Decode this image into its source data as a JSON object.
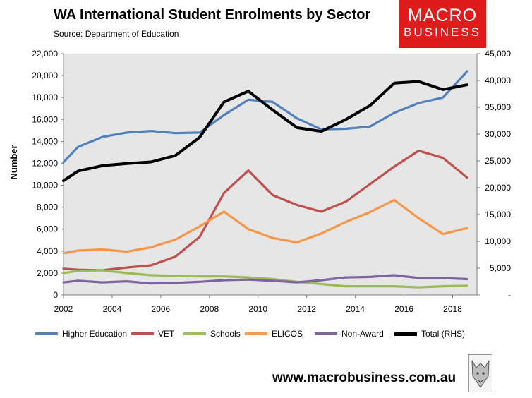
{
  "header": {
    "title": "WA International Student Enrolments by Sector",
    "source": "Source: Department of Education"
  },
  "logo": {
    "line1": "MACRO",
    "line2": "BUSINESS"
  },
  "footer": {
    "website": "www.macrobusiness.com.au"
  },
  "colors": {
    "plot_background": "#e6e6e6",
    "higher_education": "#4f81bd",
    "vet": "#c0504d",
    "schools": "#9bbb59",
    "elicos": "#f79646",
    "non_award": "#8064a2",
    "total": "#000000",
    "logo": "#e01b1b"
  },
  "chart_data": {
    "type": "line",
    "title": "WA International Student Enrolments by Sector",
    "ylabel": "Number",
    "ylabel_right": "",
    "xlim": [
      2002,
      2019
    ],
    "ylim": [
      0,
      22000
    ],
    "ylim_right": [
      0,
      45000
    ],
    "x_ticks": [
      "2002",
      "2004",
      "2006",
      "2008",
      "2010",
      "2012",
      "2014",
      "2016",
      "2018"
    ],
    "y_ticks_left": [
      "0",
      "2,000",
      "4,000",
      "6,000",
      "8,000",
      "10,000",
      "12,000",
      "14,000",
      "16,000",
      "18,000",
      "20,000",
      "22,000"
    ],
    "y_ticks_right": [
      "-",
      "5,000",
      "10,000",
      "15,000",
      "20,000",
      "25,000",
      "30,000",
      "35,000",
      "40,000",
      "45,000"
    ],
    "x": [
      2002.0,
      2002.6,
      2003.6,
      2004.6,
      2005.6,
      2006.6,
      2007.6,
      2008.6,
      2009.6,
      2010.6,
      2011.6,
      2012.6,
      2013.6,
      2014.6,
      2015.6,
      2016.6,
      2017.6,
      2018.6
    ],
    "legend_position": "bottom",
    "series": [
      {
        "name": "Higher Education",
        "axis": "left",
        "color": "#4f81bd",
        "values": [
          12100,
          13500,
          14400,
          14800,
          14950,
          14750,
          14800,
          16400,
          17800,
          17600,
          16100,
          15100,
          15150,
          15350,
          16600,
          17500,
          18000,
          20400
        ]
      },
      {
        "name": "VET",
        "axis": "left",
        "color": "#c0504d",
        "values": [
          2400,
          2300,
          2250,
          2500,
          2700,
          3500,
          5300,
          9300,
          11350,
          9100,
          8200,
          7600,
          8500,
          10100,
          11700,
          13150,
          12500,
          10700
        ]
      },
      {
        "name": "Schools",
        "axis": "left",
        "color": "#9bbb59",
        "values": [
          2000,
          2200,
          2250,
          2000,
          1800,
          1750,
          1700,
          1700,
          1600,
          1450,
          1200,
          1000,
          800,
          800,
          800,
          700,
          800,
          850
        ]
      },
      {
        "name": "ELICOS",
        "axis": "left",
        "color": "#f79646",
        "values": [
          3800,
          4050,
          4150,
          3950,
          4350,
          5050,
          6250,
          7600,
          6000,
          5200,
          4800,
          5600,
          6650,
          7550,
          8650,
          7000,
          5550,
          6100
        ]
      },
      {
        "name": "Non-Award",
        "axis": "left",
        "color": "#8064a2",
        "values": [
          1150,
          1300,
          1150,
          1250,
          1050,
          1100,
          1200,
          1350,
          1400,
          1300,
          1150,
          1350,
          1600,
          1650,
          1800,
          1550,
          1550,
          1450
        ]
      },
      {
        "name": "Total (RHS)",
        "axis": "right",
        "color": "#000000",
        "values": [
          21300,
          23100,
          24100,
          24500,
          24800,
          26000,
          29400,
          36000,
          38000,
          34500,
          31200,
          30500,
          32700,
          35300,
          39500,
          39800,
          38300,
          39200
        ]
      }
    ]
  }
}
